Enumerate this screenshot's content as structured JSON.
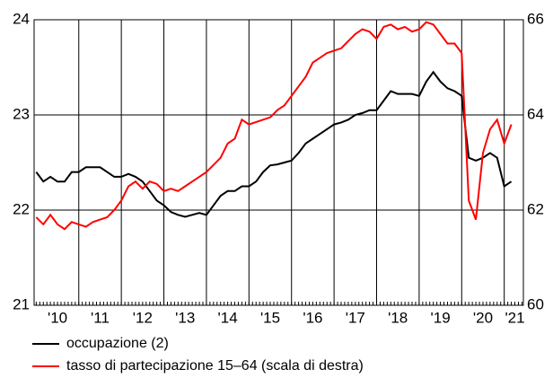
{
  "chart_data": {
    "type": "line",
    "x": [
      2010,
      2010.167,
      2010.333,
      2010.5,
      2010.667,
      2010.833,
      2011,
      2011.167,
      2011.333,
      2011.5,
      2011.667,
      2011.833,
      2012,
      2012.167,
      2012.333,
      2012.5,
      2012.667,
      2012.833,
      2013,
      2013.167,
      2013.333,
      2013.5,
      2013.667,
      2013.833,
      2014,
      2014.167,
      2014.333,
      2014.5,
      2014.667,
      2014.833,
      2015,
      2015.167,
      2015.333,
      2015.5,
      2015.667,
      2015.833,
      2016,
      2016.167,
      2016.333,
      2016.5,
      2016.667,
      2016.833,
      2017,
      2017.167,
      2017.333,
      2017.5,
      2017.667,
      2017.833,
      2018,
      2018.167,
      2018.333,
      2018.5,
      2018.667,
      2018.833,
      2019,
      2019.167,
      2019.333,
      2019.5,
      2019.667,
      2019.833,
      2020,
      2020.167,
      2020.333,
      2020.5,
      2020.667,
      2020.833,
      2021,
      2021.167
    ],
    "series": [
      {
        "name": "occupazione (2)",
        "color": "#000000",
        "values": [
          22.4,
          22.3,
          22.35,
          22.3,
          22.3,
          22.4,
          22.4,
          22.45,
          22.45,
          22.45,
          22.4,
          22.35,
          22.35,
          22.38,
          22.35,
          22.3,
          22.2,
          22.1,
          22.05,
          21.98,
          21.95,
          21.93,
          21.95,
          21.97,
          21.95,
          22.05,
          22.15,
          22.2,
          22.2,
          22.25,
          22.25,
          22.3,
          22.4,
          22.47,
          22.48,
          22.5,
          22.52,
          22.6,
          22.7,
          22.75,
          22.8,
          22.85,
          22.9,
          22.92,
          22.95,
          23.0,
          23.02,
          23.05,
          23.05,
          23.15,
          23.25,
          23.22,
          23.22,
          23.22,
          23.2,
          23.35,
          23.45,
          23.35,
          23.28,
          23.25,
          23.2,
          22.55,
          22.52,
          22.55,
          22.6,
          22.55,
          22.25,
          22.3
        ]
      },
      {
        "name": "tasso di partecipazione 15–64 (scala di destra)",
        "color": "#ff0000",
        "axis": "y2",
        "values": [
          61.85,
          61.7,
          61.9,
          61.7,
          61.6,
          61.75,
          61.7,
          61.65,
          61.75,
          61.8,
          61.85,
          62.0,
          62.2,
          62.5,
          62.6,
          62.45,
          62.6,
          62.55,
          62.4,
          62.45,
          62.4,
          62.5,
          62.6,
          62.7,
          62.8,
          62.95,
          63.1,
          63.4,
          63.5,
          63.9,
          63.8,
          63.85,
          63.9,
          63.95,
          64.1,
          64.2,
          64.4,
          64.6,
          64.8,
          65.1,
          65.2,
          65.3,
          65.35,
          65.4,
          65.55,
          65.7,
          65.8,
          65.75,
          65.6,
          65.85,
          65.9,
          65.8,
          65.85,
          65.75,
          65.8,
          65.95,
          65.9,
          65.7,
          65.5,
          65.5,
          65.3,
          62.2,
          61.8,
          63.2,
          63.7,
          63.9,
          63.4,
          63.8
        ]
      }
    ],
    "xlim": [
      2009.95,
      2021.45
    ],
    "xticks": [
      {
        "value": 2010.5,
        "label": "'10"
      },
      {
        "value": 2011.5,
        "label": "'11"
      },
      {
        "value": 2012.5,
        "label": "'12"
      },
      {
        "value": 2013.5,
        "label": "'13"
      },
      {
        "value": 2014.5,
        "label": "'14"
      },
      {
        "value": 2015.5,
        "label": "'15"
      },
      {
        "value": 2016.5,
        "label": "'16"
      },
      {
        "value": 2017.5,
        "label": "'17"
      },
      {
        "value": 2018.5,
        "label": "'18"
      },
      {
        "value": 2019.5,
        "label": "'19"
      },
      {
        "value": 2020.5,
        "label": "'20"
      },
      {
        "value": 2021.25,
        "label": "'21"
      }
    ],
    "xgrid": [
      2011,
      2012,
      2013,
      2014,
      2015,
      2016,
      2017,
      2018,
      2019,
      2020,
      2021
    ],
    "ylim": [
      21,
      24
    ],
    "yticks": [
      21,
      22,
      23,
      24
    ],
    "y2lim": [
      60,
      66
    ],
    "y2ticks": [
      60,
      62,
      64,
      66
    ],
    "grid": true,
    "legend": "bottom-left"
  }
}
